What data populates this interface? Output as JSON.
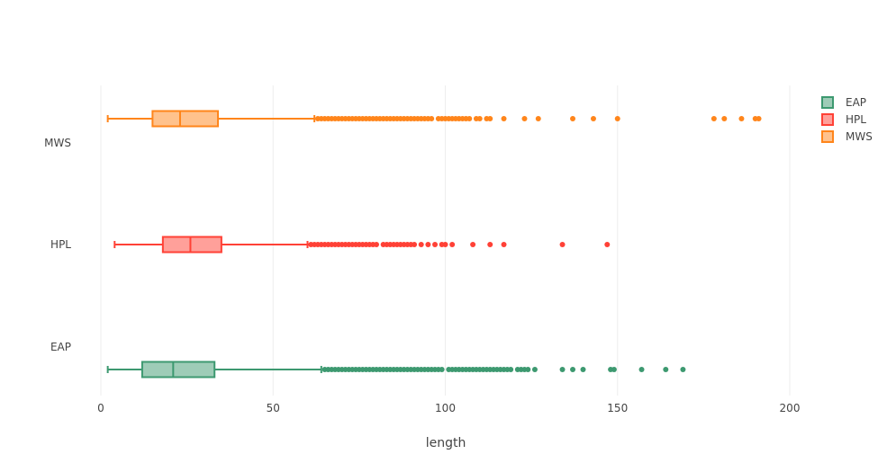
{
  "chart_data": {
    "type": "box",
    "orientation": "horizontal",
    "xlabel": "length",
    "ylabel": "",
    "xlim": [
      0,
      200
    ],
    "x_ticks": [
      0,
      50,
      100,
      150,
      200
    ],
    "grid": true,
    "legend_position": "top-right",
    "series": [
      {
        "name": "EAP",
        "color": "#3d9970",
        "fill": "rgba(61,153,112,0.5)",
        "min": 2,
        "q1": 12,
        "median": 21,
        "q3": 33,
        "upper_fence": 64,
        "outliers": [
          65,
          66,
          67,
          68,
          69,
          70,
          71,
          72,
          73,
          74,
          75,
          76,
          77,
          78,
          79,
          80,
          81,
          82,
          83,
          84,
          85,
          86,
          87,
          88,
          89,
          90,
          91,
          92,
          93,
          94,
          95,
          96,
          97,
          98,
          99,
          101,
          102,
          103,
          104,
          105,
          106,
          107,
          108,
          109,
          110,
          111,
          112,
          113,
          114,
          115,
          116,
          117,
          118,
          119,
          121,
          122,
          123,
          124,
          126,
          134,
          137,
          140,
          148,
          149,
          157,
          164,
          169
        ]
      },
      {
        "name": "HPL",
        "color": "#ff4136",
        "fill": "rgba(255,65,54,0.5)",
        "min": 4,
        "q1": 18,
        "median": 26,
        "q3": 35,
        "upper_fence": 60,
        "outliers": [
          61,
          62,
          63,
          64,
          65,
          66,
          67,
          68,
          69,
          70,
          71,
          72,
          73,
          74,
          75,
          76,
          77,
          78,
          79,
          80,
          82,
          83,
          84,
          85,
          86,
          87,
          88,
          89,
          90,
          91,
          93,
          95,
          97,
          99,
          100,
          102,
          108,
          113,
          117,
          134,
          147
        ]
      },
      {
        "name": "MWS",
        "color": "#ff851b",
        "fill": "rgba(255,133,27,0.5)",
        "min": 2,
        "q1": 15,
        "median": 23,
        "q3": 34,
        "upper_fence": 62,
        "outliers": [
          63,
          64,
          65,
          66,
          67,
          68,
          69,
          70,
          71,
          72,
          73,
          74,
          75,
          76,
          77,
          78,
          79,
          80,
          81,
          82,
          83,
          84,
          85,
          86,
          87,
          88,
          89,
          90,
          91,
          92,
          93,
          94,
          95,
          96,
          98,
          99,
          100,
          101,
          102,
          103,
          104,
          105,
          106,
          107,
          109,
          110,
          112,
          113,
          117,
          123,
          127,
          137,
          143,
          150,
          178,
          181,
          186,
          190,
          191
        ]
      }
    ]
  }
}
